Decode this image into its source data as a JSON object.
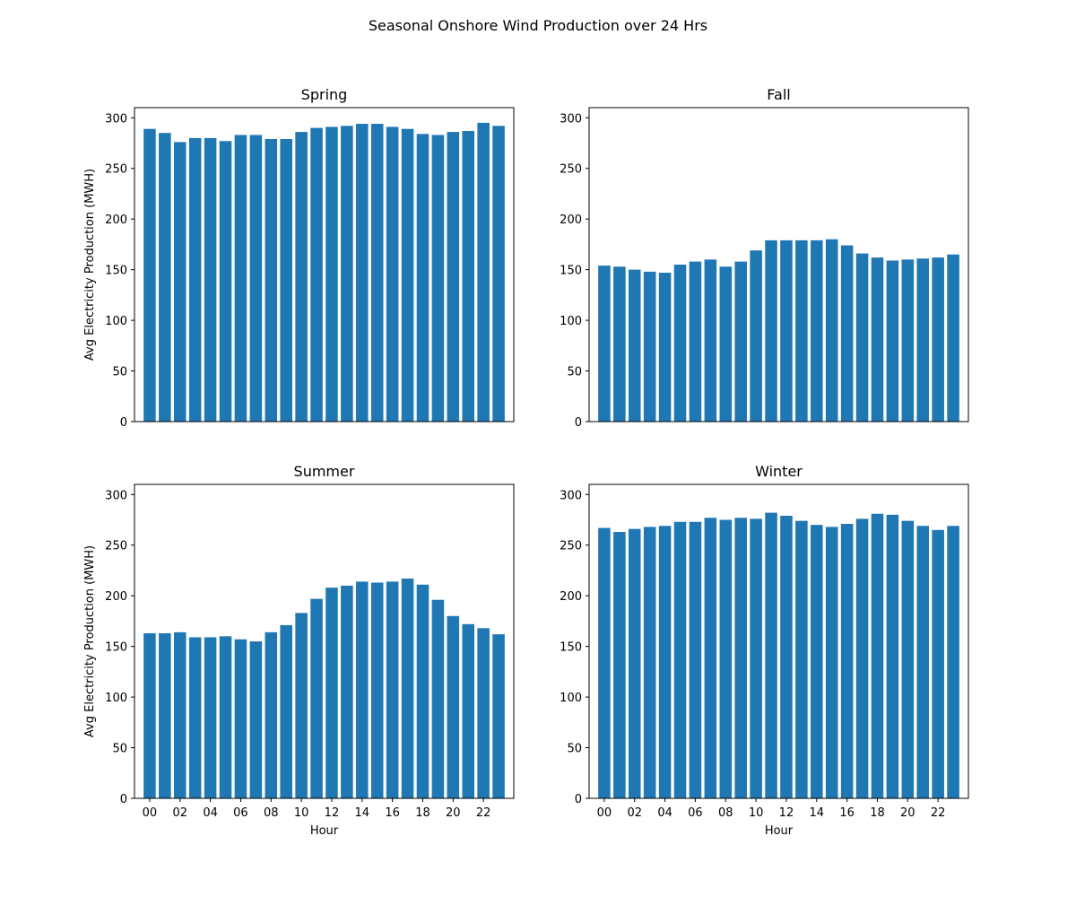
{
  "figure": {
    "title": "Seasonal Onshore Wind Production over 24 Hrs",
    "bar_color": "#1f77b4"
  },
  "chart_data": [
    {
      "type": "bar",
      "title": "Spring",
      "xlabel": "",
      "ylabel": "Avg Electricity Production (MWH)",
      "categories": [
        "00",
        "01",
        "02",
        "03",
        "04",
        "05",
        "06",
        "07",
        "08",
        "09",
        "10",
        "11",
        "12",
        "13",
        "14",
        "15",
        "16",
        "17",
        "18",
        "19",
        "20",
        "21",
        "22",
        "23"
      ],
      "values": [
        289,
        285,
        276,
        280,
        280,
        277,
        283,
        283,
        279,
        279,
        286,
        290,
        291,
        292,
        294,
        294,
        291,
        289,
        284,
        283,
        286,
        287,
        295,
        292
      ],
      "ylim": [
        0,
        310
      ],
      "yticks": [
        0,
        50,
        100,
        150,
        200,
        250,
        300
      ],
      "xticks_shown": false
    },
    {
      "type": "bar",
      "title": "Fall",
      "xlabel": "",
      "ylabel": "",
      "categories": [
        "00",
        "01",
        "02",
        "03",
        "04",
        "05",
        "06",
        "07",
        "08",
        "09",
        "10",
        "11",
        "12",
        "13",
        "14",
        "15",
        "16",
        "17",
        "18",
        "19",
        "20",
        "21",
        "22",
        "23"
      ],
      "values": [
        154,
        153,
        150,
        148,
        147,
        155,
        158,
        160,
        153,
        158,
        169,
        179,
        179,
        179,
        179,
        180,
        174,
        166,
        162,
        159,
        160,
        161,
        162,
        165
      ],
      "ylim": [
        0,
        310
      ],
      "yticks": [
        0,
        50,
        100,
        150,
        200,
        250,
        300
      ],
      "xticks_shown": false
    },
    {
      "type": "bar",
      "title": "Summer",
      "xlabel": "Hour",
      "ylabel": "Avg Electricity Production (MWH)",
      "categories": [
        "00",
        "01",
        "02",
        "03",
        "04",
        "05",
        "06",
        "07",
        "08",
        "09",
        "10",
        "11",
        "12",
        "13",
        "14",
        "15",
        "16",
        "17",
        "18",
        "19",
        "20",
        "21",
        "22",
        "23"
      ],
      "values": [
        163,
        163,
        164,
        159,
        159,
        160,
        157,
        155,
        164,
        171,
        183,
        197,
        208,
        210,
        214,
        213,
        214,
        217,
        211,
        196,
        180,
        172,
        168,
        162
      ],
      "ylim": [
        0,
        310
      ],
      "yticks": [
        0,
        50,
        100,
        150,
        200,
        250,
        300
      ],
      "xtick_labels": [
        "00",
        "02",
        "04",
        "06",
        "08",
        "10",
        "12",
        "14",
        "16",
        "18",
        "20",
        "22"
      ],
      "xticks_shown": true
    },
    {
      "type": "bar",
      "title": "Winter",
      "xlabel": "Hour",
      "ylabel": "",
      "categories": [
        "00",
        "01",
        "02",
        "03",
        "04",
        "05",
        "06",
        "07",
        "08",
        "09",
        "10",
        "11",
        "12",
        "13",
        "14",
        "15",
        "16",
        "17",
        "18",
        "19",
        "20",
        "21",
        "22",
        "23"
      ],
      "values": [
        267,
        263,
        266,
        268,
        269,
        273,
        273,
        277,
        275,
        277,
        276,
        282,
        279,
        274,
        270,
        268,
        271,
        276,
        281,
        280,
        274,
        269,
        265,
        269
      ],
      "ylim": [
        0,
        310
      ],
      "yticks": [
        0,
        50,
        100,
        150,
        200,
        250,
        300
      ],
      "xtick_labels": [
        "00",
        "02",
        "04",
        "06",
        "08",
        "10",
        "12",
        "14",
        "16",
        "18",
        "20",
        "22"
      ],
      "xticks_shown": true
    }
  ]
}
